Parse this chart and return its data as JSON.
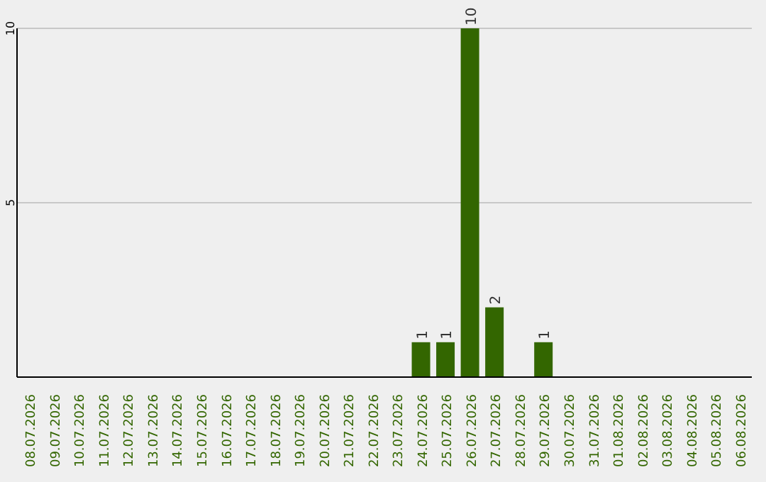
{
  "chart_data": {
    "type": "bar",
    "categories": [
      "08.07.2026",
      "09.07.2026",
      "10.07.2026",
      "11.07.2026",
      "12.07.2026",
      "13.07.2026",
      "14.07.2026",
      "15.07.2026",
      "16.07.2026",
      "17.07.2026",
      "18.07.2026",
      "19.07.2026",
      "20.07.2026",
      "21.07.2026",
      "22.07.2026",
      "23.07.2026",
      "24.07.2026",
      "25.07.2026",
      "26.07.2026",
      "27.07.2026",
      "28.07.2026",
      "29.07.2026",
      "30.07.2026",
      "31.07.2026",
      "01.08.2026",
      "02.08.2026",
      "03.08.2026",
      "04.08.2026",
      "05.08.2026",
      "06.08.2026"
    ],
    "values": [
      0,
      0,
      0,
      0,
      0,
      0,
      0,
      0,
      0,
      0,
      0,
      0,
      0,
      0,
      0,
      0,
      1,
      1,
      10,
      2,
      0,
      1,
      0,
      0,
      0,
      0,
      0,
      0,
      0,
      0
    ],
    "value_labels": [
      null,
      null,
      null,
      null,
      null,
      null,
      null,
      null,
      null,
      null,
      null,
      null,
      null,
      null,
      null,
      null,
      "1",
      "1",
      "10",
      "2",
      null,
      "1",
      null,
      null,
      null,
      null,
      null,
      null,
      null,
      null
    ],
    "color": "#336600",
    "ylim": [
      0,
      10
    ],
    "yticks": [
      5,
      10
    ],
    "grid": "y"
  }
}
